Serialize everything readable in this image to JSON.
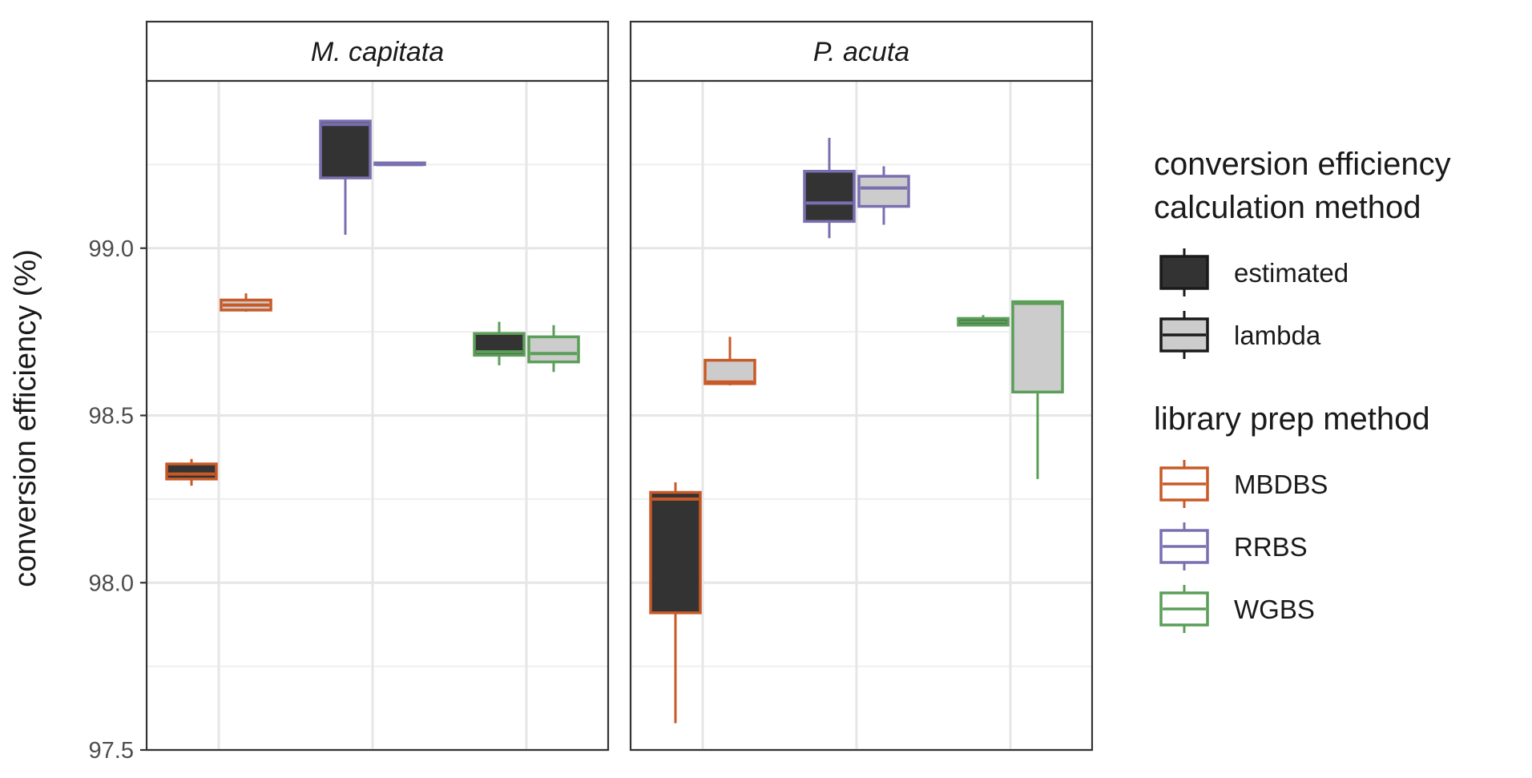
{
  "chart_data": {
    "type": "boxplot",
    "ylabel": "conversion efficiency (%)",
    "xlabel": "",
    "ylim": [
      97.5,
      99.5
    ],
    "yticks": [
      97.5,
      98.0,
      98.5,
      99.0
    ],
    "ytick_labels": [
      "97.5",
      "98.0",
      "98.5",
      "99.0"
    ],
    "grid": true,
    "legend_placement": "right",
    "method_categories": [
      "MBDBS",
      "RRBS",
      "WGBS"
    ],
    "panels": [
      {
        "name": "M. capitata",
        "boxes": [
          {
            "library": "MBDBS",
            "method": "estimated",
            "min": 98.29,
            "q1": 98.31,
            "median": 98.325,
            "q3": 98.355,
            "max": 98.37
          },
          {
            "library": "MBDBS",
            "method": "lambda",
            "min": 98.81,
            "q1": 98.815,
            "median": 98.83,
            "q3": 98.845,
            "max": 98.865
          },
          {
            "library": "RRBS",
            "method": "estimated",
            "min": 99.04,
            "q1": 99.21,
            "median": 99.37,
            "q3": 99.38,
            "max": 99.38
          },
          {
            "library": "RRBS",
            "method": "lambda",
            "min": 99.25,
            "q1": 99.25,
            "median": 99.25,
            "q3": 99.255,
            "max": 99.255
          },
          {
            "library": "WGBS",
            "method": "estimated",
            "min": 98.65,
            "q1": 98.68,
            "median": 98.69,
            "q3": 98.745,
            "max": 98.78
          },
          {
            "library": "WGBS",
            "method": "lambda",
            "min": 98.63,
            "q1": 98.66,
            "median": 98.685,
            "q3": 98.735,
            "max": 98.77
          }
        ]
      },
      {
        "name": "P. acuta",
        "boxes": [
          {
            "library": "MBDBS",
            "method": "estimated",
            "min": 97.58,
            "q1": 97.91,
            "median": 98.25,
            "q3": 98.27,
            "max": 98.3
          },
          {
            "library": "MBDBS",
            "method": "lambda",
            "min": 98.59,
            "q1": 98.595,
            "median": 98.6,
            "q3": 98.665,
            "max": 98.735
          },
          {
            "library": "RRBS",
            "method": "estimated",
            "min": 99.03,
            "q1": 99.08,
            "median": 99.135,
            "q3": 99.23,
            "max": 99.33
          },
          {
            "library": "RRBS",
            "method": "lambda",
            "min": 99.07,
            "q1": 99.125,
            "median": 99.18,
            "q3": 99.215,
            "max": 99.245
          },
          {
            "library": "WGBS",
            "method": "estimated",
            "min": 98.77,
            "q1": 98.77,
            "median": 98.78,
            "q3": 98.79,
            "max": 98.8
          },
          {
            "library": "WGBS",
            "method": "lambda",
            "min": 98.31,
            "q1": 98.57,
            "median": 98.835,
            "q3": 98.84,
            "max": 98.84
          }
        ]
      }
    ],
    "legends": [
      {
        "title_lines": [
          "conversion efficiency",
          "calculation method"
        ],
        "entries": [
          {
            "label": "estimated",
            "fill": "#333333",
            "stroke": "#1a1a1a"
          },
          {
            "label": "lambda",
            "fill": "#cccccc",
            "stroke": "#1a1a1a"
          }
        ]
      },
      {
        "title_lines": [
          "library prep method"
        ],
        "entries": [
          {
            "label": "MBDBS",
            "fill": "#ffffff",
            "stroke": "#c85a28"
          },
          {
            "label": "RRBS",
            "fill": "#ffffff",
            "stroke": "#7b6fb0"
          },
          {
            "label": "WGBS",
            "fill": "#ffffff",
            "stroke": "#5b9e58"
          }
        ]
      }
    ],
    "colors": {
      "MBDBS": "#c85a28",
      "RRBS": "#7b6fb0",
      "WGBS": "#5b9e58",
      "estimated_fill": "#333333",
      "lambda_fill": "#cccccc",
      "median_estimated": "#1a1a1a",
      "median_lambda": "#ffffff"
    }
  }
}
